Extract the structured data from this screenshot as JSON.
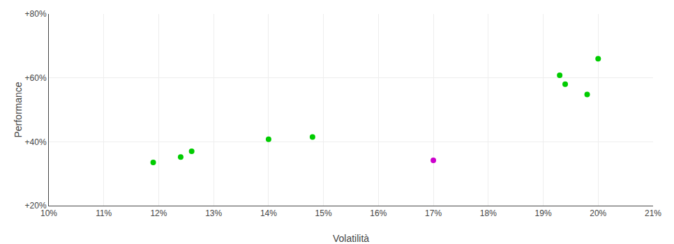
{
  "chart_data": {
    "type": "scatter",
    "xlabel": "Volatilità",
    "ylabel": "Performance",
    "xlim": [
      0.1,
      0.21
    ],
    "ylim": [
      0.2,
      0.8
    ],
    "xticks": [
      {
        "value": 0.1,
        "label": "10%"
      },
      {
        "value": 0.11,
        "label": "11%"
      },
      {
        "value": 0.12,
        "label": "12%"
      },
      {
        "value": 0.13,
        "label": "13%"
      },
      {
        "value": 0.14,
        "label": "14%"
      },
      {
        "value": 0.15,
        "label": "15%"
      },
      {
        "value": 0.16,
        "label": "16%"
      },
      {
        "value": 0.17,
        "label": "17%"
      },
      {
        "value": 0.18,
        "label": "18%"
      },
      {
        "value": 0.19,
        "label": "19%"
      },
      {
        "value": 0.2,
        "label": "20%"
      },
      {
        "value": 0.21,
        "label": "21%"
      }
    ],
    "yticks": [
      {
        "value": 0.2,
        "label": "+20%"
      },
      {
        "value": 0.4,
        "label": "+40%"
      },
      {
        "value": 0.6,
        "label": "+60%"
      },
      {
        "value": 0.8,
        "label": "+80%"
      }
    ],
    "grid": true,
    "series": [
      {
        "color": "#00cc00",
        "x": [
          0.119,
          0.124,
          0.126,
          0.14,
          0.148,
          0.193,
          0.194,
          0.198,
          0.2
        ],
        "values": [
          0.335,
          0.352,
          0.37,
          0.408,
          0.415,
          0.608,
          0.58,
          0.548,
          0.66
        ]
      },
      {
        "color": "#cc00cc",
        "x": [
          0.17
        ],
        "values": [
          0.342
        ]
      }
    ]
  }
}
